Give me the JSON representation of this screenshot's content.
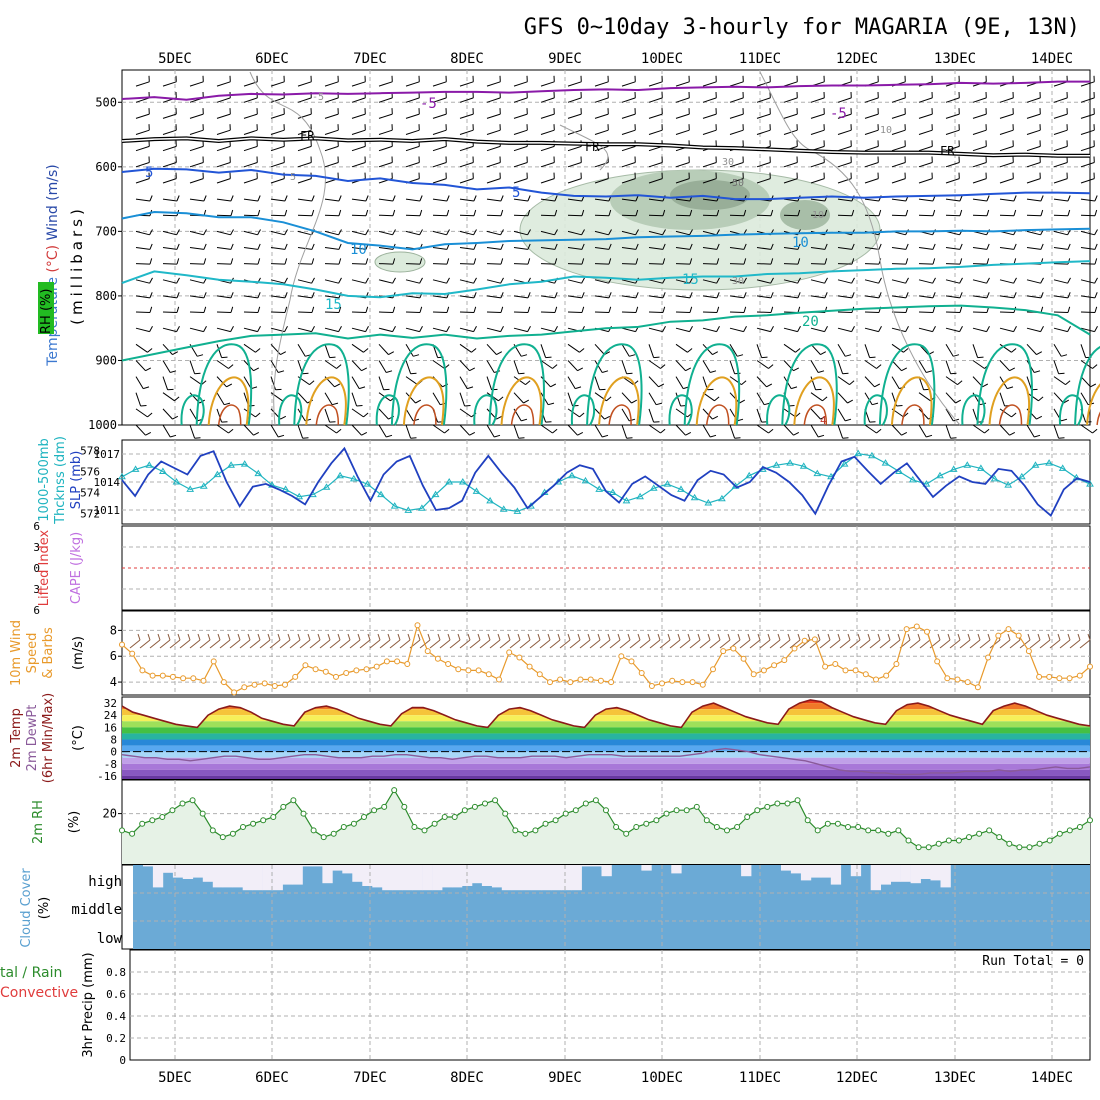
{
  "title": "GFS 0~10day 3-hourly for MAGARIA (9E, 13N)",
  "chart_data": {
    "type": "line",
    "x_dates": [
      "5DEC",
      "6DEC",
      "7DEC",
      "8DEC",
      "9DEC",
      "10DEC",
      "11DEC",
      "12DEC",
      "13DEC",
      "14DEC"
    ],
    "panels": {
      "upper_air": {
        "ylabel_parts": [
          {
            "text": "RH (%)",
            "color": "#1e7a1e"
          },
          {
            "text": "Temperature",
            "color": "#3c78d0"
          },
          {
            "text": "(°C)",
            "color": "#d23c3c"
          },
          {
            "text": "Wind (m/s)",
            "color": "#2848a8"
          }
        ],
        "ylabel_unit": "(millibars)",
        "ylim": [
          1000,
          450
        ],
        "yticks": [
          500,
          600,
          700,
          800,
          900,
          1000
        ],
        "rh_legend_label": "RH (%)",
        "isotherms": [
          {
            "label": "-5",
            "color": "#8a1aa8",
            "levels": [
              495,
              492,
              496,
              490,
              487,
              488,
              486,
              487,
              486,
              485,
              484,
              484,
              485,
              483,
              481,
              480,
              481,
              478,
              477,
              476,
              477,
              475,
              474,
              474,
              473,
              472,
              470,
              471,
              470,
              468,
              468
            ]
          },
          {
            "label": "FR",
            "color": "#000000",
            "levels": [
              560,
              557,
              556,
              560,
              556,
              558,
              556,
              559,
              558,
              560,
              557,
              561,
              563,
              563,
              564,
              565,
              565,
              567,
              570,
              571,
              573,
              575,
              577,
              578,
              578,
              578,
              580,
              582,
              581,
              583,
              583
            ]
          },
          {
            "label": "5",
            "color": "#2255d6",
            "levels": [
              608,
              603,
              604,
              609,
              605,
              612,
              614,
              622,
              618,
              625,
              628,
              635,
              632,
              640,
              645,
              646,
              644,
              648,
              645,
              650,
              650,
              648,
              646,
              648,
              646,
              645,
              644,
              642,
              640,
              640,
              641
            ]
          },
          {
            "label": "10",
            "color": "#1a8fd6",
            "levels": [
              680,
              670,
              672,
              678,
              678,
              686,
              700,
              718,
              722,
              728,
              720,
              718,
              715,
              714,
              713,
              712,
              709,
              708,
              707,
              705,
              704,
              703,
              702,
              702,
              700,
              700,
              699,
              700,
              698,
              697,
              696
            ]
          },
          {
            "label": "15",
            "color": "#20b8c8",
            "levels": [
              780,
              762,
              768,
              775,
              778,
              782,
              790,
              800,
              802,
              796,
              797,
              790,
              782,
              778,
              770,
              772,
              775,
              772,
              770,
              770,
              766,
              765,
              762,
              760,
              758,
              757,
              755,
              752,
              750,
              748,
              746
            ]
          },
          {
            "label": "20",
            "color": "#10b090",
            "levels": [
              900,
              890,
              880,
              870,
              862,
              860,
              858,
              866,
              860,
              865,
              860,
              866,
              862,
              860,
              855,
              850,
              848,
              840,
              838,
              832,
              830,
              826,
              823,
              820,
              818,
              816,
              815,
              818,
              822,
              830,
              860
            ]
          }
        ],
        "contour_labels": [
          "-5",
          "-5",
          "-5",
          "FR",
          "FR",
          "FR",
          "5",
          "5",
          "5",
          "10",
          "10",
          "15",
          "15",
          "20",
          "10",
          "10",
          "30",
          "30",
          "50",
          "4"
        ]
      },
      "thickness_slp": {
        "ylabel_left": "1000-500mb",
        "ylabel_left2": "Thcknss (dm)",
        "ylabel_right": "SLP (mb)",
        "yticks_left": [
          572,
          574,
          576,
          578
        ],
        "yticks_right": [
          1011,
          1014,
          1017
        ],
        "series": [
          {
            "name": "Thickness",
            "color": "#20b4c0",
            "values": [
              575.5,
              576.2,
              576.6,
              576.0,
              575.0,
              574.3,
              574.6,
              575.7,
              576.6,
              576.7,
              575.8,
              574.7,
              574.3,
              573.6,
              573.8,
              574.5,
              575.6,
              575.3,
              574.8,
              573.8,
              572.7,
              572.3,
              572.5,
              573.8,
              575.0,
              575.0,
              574.1,
              573.2,
              572.4,
              572.2,
              572.7,
              574.0,
              575.0,
              575.6,
              575.1,
              574.3,
              574.0,
              573.2,
              573.6,
              574.4,
              574.8,
              574.3,
              573.5,
              573.0,
              573.4,
              574.6,
              575.6,
              576.2,
              576.6,
              576.8,
              576.5,
              575.8,
              575.5,
              576.7,
              577.7,
              577.5,
              576.8,
              576.0,
              575.2,
              574.8,
              575.6,
              576.2,
              576.6,
              576.3,
              575.3,
              574.7,
              575.5,
              576.6,
              576.8,
              576.3,
              575.4,
              574.8
            ]
          },
          {
            "name": "SLP",
            "color": "#2040c0",
            "values": [
              1014.2,
              1012.5,
              1014.8,
              1016.2,
              1015.5,
              1014.8,
              1016.8,
              1017.3,
              1014.0,
              1011.4,
              1013.5,
              1013.8,
              1013.2,
              1012.5,
              1011.6,
              1014.0,
              1016.0,
              1017.6,
              1014.6,
              1012.0,
              1014.8,
              1016.2,
              1016.8,
              1013.6,
              1011.0,
              1011.2,
              1012.0,
              1015.0,
              1016.8,
              1015.0,
              1013.4,
              1011.2,
              1012.4,
              1013.6,
              1015.0,
              1015.8,
              1015.4,
              1013.0,
              1011.8,
              1013.8,
              1014.6,
              1013.6,
              1012.6,
              1012.0,
              1014.2,
              1015.2,
              1014.8,
              1013.4,
              1014.0,
              1015.6,
              1015.0,
              1014.0,
              1012.6,
              1010.6,
              1013.6,
              1016.2,
              1016.7,
              1015.2,
              1013.8,
              1015.0,
              1016.0,
              1014.2,
              1012.4,
              1013.6,
              1014.6,
              1014.0,
              1013.8,
              1015.4,
              1015.2,
              1013.6,
              1011.6,
              1010.4,
              1013.2,
              1014.4,
              1014.0
            ]
          }
        ]
      },
      "cape_li": {
        "ylabel_left": "Lifted Index",
        "ylabel_right": "CAPE (J/kg)",
        "yticks": [
          -6,
          -3,
          0,
          3,
          6
        ],
        "zero_color": "#e03c3c"
      },
      "wind10m": {
        "ylabel": "10m Wind",
        "ylabel2": "Speed",
        "ylabel3": "& Barbs",
        "unit": "(m/s)",
        "yticks": [
          4,
          6,
          8
        ],
        "ylim": [
          3,
          9.5
        ],
        "series": [
          {
            "name": "10m Wind Speed",
            "color": "#e89a2c",
            "values": [
              6.9,
              6.2,
              4.9,
              4.5,
              4.5,
              4.4,
              4.3,
              4.3,
              4.1,
              5.6,
              4.0,
              3.2,
              3.6,
              3.8,
              3.9,
              3.7,
              3.8,
              4.4,
              5.3,
              5.0,
              4.8,
              4.4,
              4.7,
              4.9,
              5.0,
              5.2,
              5.6,
              5.6,
              5.4,
              8.4,
              6.4,
              5.8,
              5.4,
              5.0,
              4.9,
              4.9,
              4.6,
              4.2,
              6.3,
              5.9,
              5.2,
              4.6,
              4.0,
              4.2,
              4.0,
              4.2,
              4.2,
              4.1,
              4.0,
              6.0,
              5.6,
              4.7,
              3.7,
              3.9,
              4.1,
              4.0,
              4.0,
              3.8,
              5.0,
              6.4,
              6.6,
              5.8,
              4.6,
              4.9,
              5.3,
              5.7,
              6.6,
              7.2,
              7.3,
              5.2,
              5.4,
              4.9,
              4.9,
              4.6,
              4.2,
              4.5,
              5.4,
              8.1,
              8.3,
              7.9,
              5.6,
              4.3,
              4.2,
              4.0,
              3.6,
              5.9,
              7.6,
              8.1,
              7.6,
              6.4,
              4.4,
              4.4,
              4.3,
              4.3,
              4.5,
              5.2
            ]
          }
        ]
      },
      "temp2m": {
        "ylabel": "2m Temp",
        "ylabel2": "2m DewPt",
        "ylabel3": "(6hr Min/Max)",
        "unit": "(°C)",
        "yticks": [
          -16,
          -8,
          0,
          8,
          16,
          24,
          32
        ],
        "ylim": [
          -18,
          36
        ],
        "series": [
          {
            "name": "2m Temp",
            "color": "#8b1a1a",
            "values": [
              30,
              26,
              24,
              22,
              20,
              18,
              17,
              16,
              24,
              28,
              30,
              29,
              26,
              22,
              20,
              18,
              17,
              26,
              29,
              30,
              28,
              25,
              22,
              20,
              18,
              17,
              25,
              29,
              29,
              27,
              24,
              21,
              19,
              17,
              16,
              24,
              28,
              29,
              27,
              24,
              21,
              19,
              17,
              16,
              24,
              28,
              29,
              27,
              24,
              21,
              19,
              17,
              16,
              26,
              30,
              32,
              29,
              26,
              23,
              21,
              19,
              18,
              28,
              32,
              34,
              33,
              29,
              26,
              23,
              21,
              19,
              18,
              27,
              31,
              32,
              30,
              27,
              24,
              22,
              20,
              18,
              27,
              30,
              32,
              30,
              27,
              24,
              22,
              20,
              18,
              17
            ]
          },
          {
            "name": "2m DewPt",
            "color": "#8a5a9a",
            "values": [
              -2,
              -3,
              -4,
              -4,
              -5,
              -5,
              -6,
              -5,
              -4,
              -3,
              -3,
              -4,
              -5,
              -5,
              -4,
              -3,
              -2,
              -2,
              -3,
              -4,
              -4,
              -4,
              -3,
              -3,
              -2,
              -2,
              -3,
              -4,
              -4,
              -5,
              -4,
              -3,
              -3,
              -4,
              -4,
              -4,
              -3,
              -3,
              -3,
              -4,
              -3,
              -2,
              -2,
              -2,
              -3,
              -3,
              -3,
              -3,
              -3,
              -3,
              -2,
              -1,
              1,
              2,
              1,
              0,
              -2,
              -3,
              -4,
              -5,
              -6,
              -8,
              -10,
              -12,
              -13,
              -13,
              -14,
              -14,
              -15,
              -15,
              -15,
              -14,
              -14,
              -14,
              -13,
              -13,
              -13,
              -12,
              -13,
              -12,
              -12,
              -11,
              -10,
              -11,
              -11,
              -10
            ]
          }
        ]
      },
      "rh2m": {
        "ylabel": "2m RH",
        "unit": "(%)",
        "yticks": [
          20
        ],
        "ylim": [
          5,
          30
        ],
        "series": [
          {
            "name": "2m RH",
            "color": "#2c8c2c",
            "values": [
              15,
              14,
              17,
              18,
              19,
              21,
              23,
              24,
              20,
              15,
              13,
              14,
              16,
              17,
              18,
              19,
              22,
              24,
              20,
              15,
              13,
              14,
              16,
              17,
              19,
              21,
              22,
              27,
              22,
              16,
              15,
              17,
              19,
              19,
              21,
              22,
              23,
              24,
              20,
              15,
              14,
              15,
              17,
              18,
              20,
              21,
              23,
              24,
              21,
              16,
              14,
              16,
              17,
              18,
              20,
              21,
              21,
              22,
              18,
              16,
              15,
              16,
              19,
              21,
              22,
              23,
              23,
              24,
              18,
              15,
              17,
              17,
              16,
              16,
              15,
              15,
              14,
              15,
              12,
              10,
              10,
              11,
              12,
              12,
              13,
              14,
              15,
              13,
              11,
              10,
              10,
              11,
              12,
              14,
              15,
              16,
              18
            ]
          }
        ]
      },
      "cloud": {
        "ylabel": "Cloud Cover",
        "unit": "(%)",
        "rows": [
          "high",
          "middle",
          "low"
        ],
        "high_cover_fraction": [
          100,
          95,
          20,
          72,
          55,
          50,
          55,
          40,
          20,
          20,
          20,
          10,
          10,
          10,
          10,
          30,
          30,
          95,
          95,
          35,
          80,
          70,
          40,
          25,
          20,
          10,
          10,
          10,
          10,
          10,
          10,
          20,
          20,
          25,
          35,
          25,
          20,
          10,
          10,
          10,
          10,
          10,
          10,
          10,
          10,
          95,
          95,
          60,
          100,
          100,
          100,
          80,
          100,
          100,
          70,
          100,
          100,
          100,
          100,
          100,
          100,
          60,
          100,
          100,
          100,
          80,
          70,
          45,
          55,
          55,
          30,
          100,
          60,
          100,
          10,
          30,
          40,
          40,
          35,
          50,
          45,
          20,
          100,
          100,
          100,
          100,
          100,
          100,
          100,
          100,
          100,
          100,
          100,
          100,
          100,
          100
        ]
      },
      "precip": {
        "ylabel": "3hr Precip (mm)",
        "legend_total": "tal / Rain",
        "legend_convective": "Convective",
        "run_total": "Run Total = 0",
        "yticks": [
          0,
          0.2,
          0.4,
          0.6,
          0.8
        ],
        "ylim": [
          0,
          1.0
        ],
        "values": []
      }
    }
  }
}
